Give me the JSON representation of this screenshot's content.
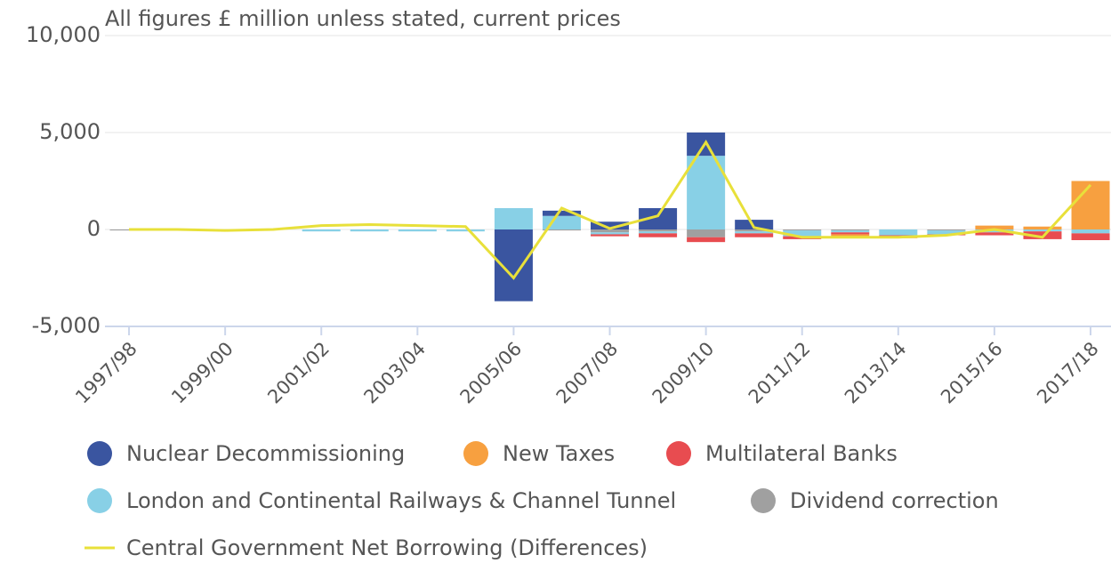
{
  "chart_data": {
    "type": "bar",
    "subtitle": "All figures £ million unless stated, current prices",
    "categories": [
      "1997/98",
      null,
      "1999/00",
      null,
      "2001/02",
      null,
      "2003/04",
      null,
      "2005/06",
      null,
      "2007/08",
      null,
      "2009/10",
      null,
      "2011/12",
      null,
      "2013/14",
      null,
      "2015/16",
      null,
      "2017/18"
    ],
    "ylim": [
      -5000,
      10000
    ],
    "yticks": [
      {
        "value": -5000,
        "label": "-5,000"
      },
      0,
      {
        "value": 5000,
        "label": "5,000"
      },
      {
        "value": 10000,
        "label": "10,000"
      }
    ],
    "grid": true,
    "stacked": true,
    "series": [
      {
        "name": "Nuclear Decommissioning",
        "color": "#3a55a0",
        "values": [
          0,
          0,
          0,
          0,
          0,
          0,
          0,
          0,
          -3700,
          270,
          400,
          1100,
          1200,
          500,
          0,
          0,
          0,
          0,
          0,
          0,
          0
        ]
      },
      {
        "name": "New Taxes",
        "color": "#f7a040",
        "values": [
          0,
          0,
          0,
          0,
          0,
          0,
          0,
          0,
          0,
          0,
          0,
          0,
          0,
          0,
          0,
          -200,
          -50,
          0,
          200,
          150,
          2500
        ]
      },
      {
        "name": "Multilateral Banks",
        "color": "#e84c50",
        "values": [
          0,
          0,
          0,
          0,
          0,
          0,
          0,
          0,
          0,
          0,
          -100,
          -200,
          -250,
          -200,
          -150,
          -100,
          -100,
          -50,
          -150,
          -400,
          -350
        ]
      },
      {
        "name": "London and Continental Railways & Channel Tunnel",
        "color": "#88d0e6",
        "values": [
          0,
          0,
          0,
          0,
          -100,
          -100,
          -100,
          -100,
          1100,
          700,
          -100,
          -100,
          3800,
          -100,
          -300,
          -100,
          -300,
          -200,
          -150,
          -100,
          -200
        ]
      },
      {
        "name": "Dividend correction",
        "color": "#a0a0a0",
        "values": [
          -50,
          0,
          0,
          0,
          0,
          0,
          0,
          0,
          0,
          -50,
          -150,
          -100,
          -400,
          -100,
          -50,
          -50,
          0,
          -50,
          0,
          0,
          0
        ]
      },
      {
        "name": "Central Government Net Borrowing (Differences)",
        "type": "line",
        "color": "#e8e03a",
        "values": [
          0,
          0,
          -50,
          0,
          200,
          250,
          200,
          150,
          -2500,
          1100,
          50,
          700,
          4500,
          100,
          -400,
          -400,
          -400,
          -300,
          0,
          -400,
          2300
        ]
      }
    ]
  }
}
